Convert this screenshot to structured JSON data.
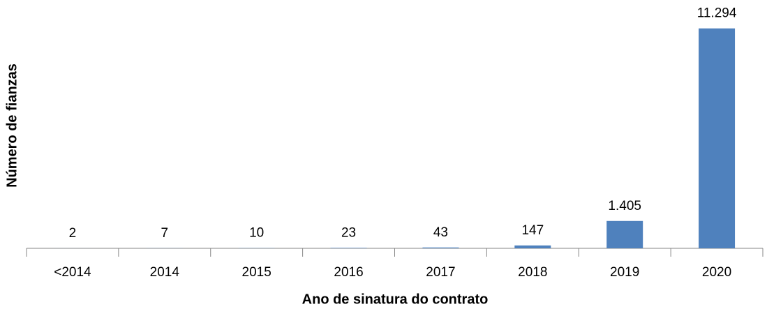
{
  "chart_data": {
    "type": "bar",
    "x_label": "Ano de sinatura do contrato",
    "y_label": "Número de fianzas",
    "categories": [
      "<2014",
      "2014",
      "2015",
      "2016",
      "2017",
      "2018",
      "2019",
      "2020"
    ],
    "values": [
      2,
      7,
      10,
      23,
      43,
      147,
      1405,
      11294
    ],
    "value_labels": [
      "2",
      "7",
      "10",
      "23",
      "43",
      "147",
      "1.405",
      "11.294"
    ],
    "color": "#4f81bd",
    "ylim": [
      0,
      12000
    ]
  }
}
